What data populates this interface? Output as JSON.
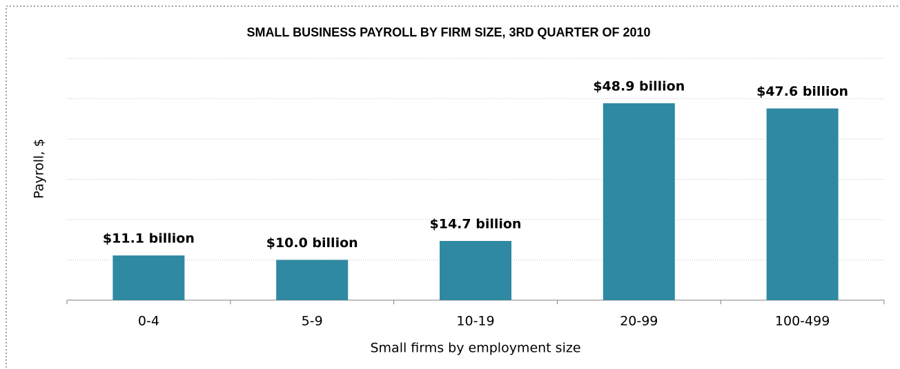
{
  "chart_data": {
    "type": "bar",
    "title": "SMALL BUSINESS PAYROLL BY FIRM SIZE, 3RD QUARTER OF 2010",
    "x_label": "Small firms by employment size",
    "y_label": "Payroll, $",
    "categories": [
      "0-4",
      "5-9",
      "10-19",
      "20-99",
      "100-499"
    ],
    "values": [
      11.1,
      10.0,
      14.7,
      48.9,
      47.6
    ],
    "value_labels": [
      "$11.1 billion",
      "$10.0 billion",
      "$14.7 billion",
      "$48.9 billion",
      "$47.6 billion"
    ],
    "color": "#2f89a2",
    "ylim": [
      0,
      60
    ],
    "yticks": [
      0,
      10,
      20,
      30,
      40,
      50,
      60
    ],
    "ytick_labels": false,
    "grid": true
  }
}
